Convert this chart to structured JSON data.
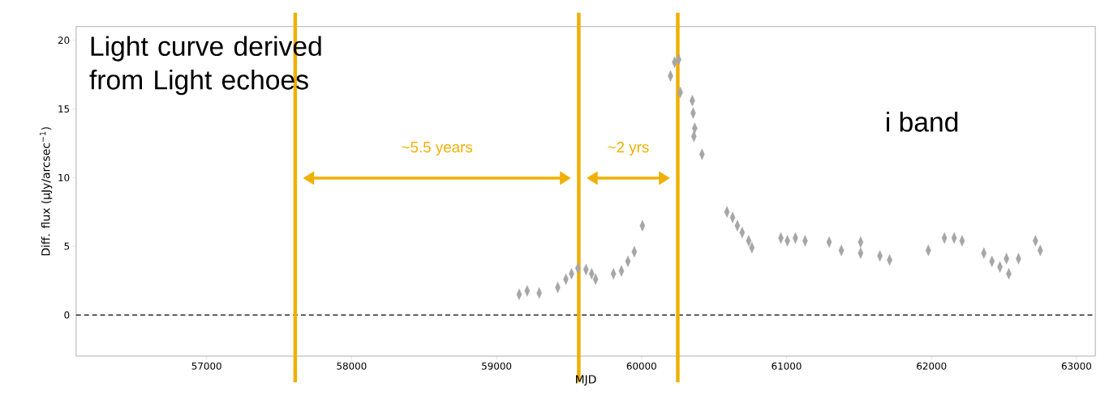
{
  "chart_data": {
    "type": "scatter",
    "xlabel": "MJD",
    "ylabel": "Diff. flux (μJy/arcsec$^{−1}$)",
    "xlim": [
      56100,
      63130
    ],
    "ylim": [
      -3,
      21
    ],
    "xticks": [
      57000,
      58000,
      59000,
      60000,
      61000,
      62000,
      63000
    ],
    "yticks": [
      0,
      5,
      10,
      15,
      20
    ],
    "marker": "diamond",
    "grid": false,
    "series": [
      {
        "color": "#a6a6a6",
        "x": [
          59156,
          59211,
          59294,
          59422,
          59478,
          59517,
          59561,
          59617,
          59656,
          59683,
          59806,
          59861,
          59906,
          59950,
          60006,
          60200,
          60228,
          60256,
          60267,
          60350,
          60356,
          60361,
          60367,
          60417,
          60589,
          60628,
          60661,
          60694,
          60739,
          60761,
          60961,
          61006,
          61061,
          61128,
          61294,
          61378,
          61511,
          61511,
          61644,
          61711,
          61978,
          62089,
          62156,
          62211,
          62361,
          62417,
          62472,
          62517,
          62533,
          62600,
          62717,
          62750
        ],
        "values": [
          1.5,
          1.75,
          1.6,
          2.0,
          2.6,
          3.0,
          3.4,
          3.3,
          3.0,
          2.6,
          3.0,
          3.2,
          3.9,
          4.6,
          6.5,
          17.4,
          18.4,
          18.6,
          16.2,
          15.6,
          14.7,
          13.0,
          13.6,
          11.7,
          7.5,
          7.1,
          6.5,
          6.0,
          5.4,
          4.9,
          5.6,
          5.4,
          5.6,
          5.4,
          5.3,
          4.7,
          5.3,
          4.5,
          4.3,
          4.0,
          4.7,
          5.6,
          5.6,
          5.4,
          4.5,
          3.9,
          3.5,
          4.1,
          3.0,
          4.1,
          5.4,
          4.7
        ]
      }
    ],
    "ref_lines": [
      {
        "axis": "y",
        "value": 0,
        "color": "#000000",
        "line_style": "dashed"
      },
      {
        "axis": "x",
        "value": 57611,
        "color": "#f0b000",
        "line_style": "solid"
      },
      {
        "axis": "x",
        "value": 59567,
        "color": "#f0b000",
        "line_style": "solid"
      },
      {
        "axis": "x",
        "value": 60250,
        "color": "#f0b000",
        "line_style": "solid"
      }
    ],
    "annotations": [
      "Light curve derived from Light echoes",
      "i band",
      "~5.5 years",
      "~2 yrs"
    ]
  }
}
